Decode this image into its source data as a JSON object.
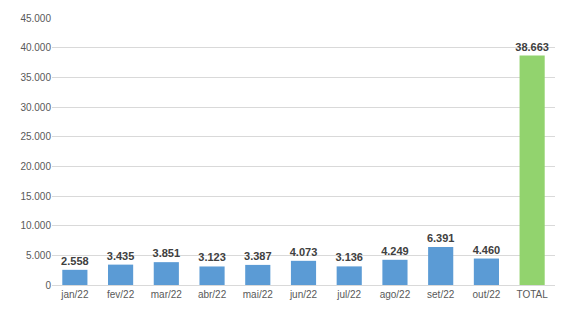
{
  "chart_data": {
    "type": "bar",
    "categories": [
      "jan/22",
      "fev/22",
      "mar/22",
      "abr/22",
      "mai/22",
      "jun/22",
      "jul/22",
      "ago/22",
      "set/22",
      "out/22",
      "TOTAL"
    ],
    "values": [
      2558,
      3435,
      3851,
      3123,
      3387,
      4073,
      3136,
      4249,
      6391,
      4460,
      38663
    ],
    "value_labels": [
      "2.558",
      "3.435",
      "3.851",
      "3.123",
      "3.387",
      "4.073",
      "3.136",
      "4.249",
      "6.391",
      "4.460",
      "38.663"
    ],
    "colors": [
      "#5b9bd5",
      "#5b9bd5",
      "#5b9bd5",
      "#5b9bd5",
      "#5b9bd5",
      "#5b9bd5",
      "#5b9bd5",
      "#5b9bd5",
      "#5b9bd5",
      "#5b9bd5",
      "#92d36e"
    ],
    "ylim": [
      0,
      45000
    ],
    "yticks": [
      0,
      {
        "value": 5000,
        "label": "5.000"
      },
      {
        "value": 10000,
        "label": "10.000"
      },
      {
        "value": 15000,
        "label": "15.000"
      },
      {
        "value": 20000,
        "label": "20.000"
      },
      {
        "value": 25000,
        "label": "25.000"
      },
      {
        "value": 30000,
        "label": "30.000"
      },
      {
        "value": 35000,
        "label": "35.000"
      },
      {
        "value": 40000,
        "label": "40.000"
      },
      {
        "value": 45000,
        "label": "45.000"
      }
    ],
    "grid": true,
    "data_labels": true
  }
}
